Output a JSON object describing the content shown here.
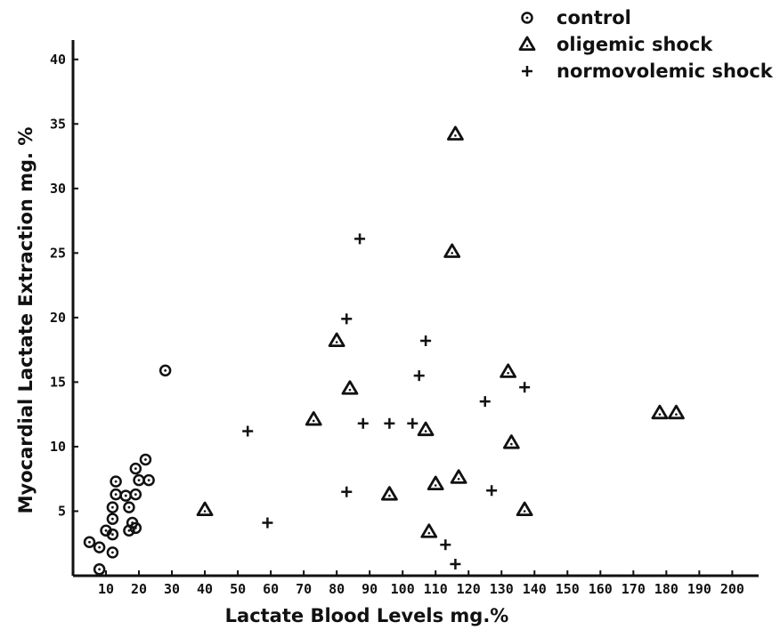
{
  "chart_data": {
    "type": "scatter",
    "title": "",
    "xlabel": "Lactate  Blood  Levels    mg.%",
    "ylabel": "Myocardial  Lactate  Extraction    mg. %",
    "xlim": [
      0,
      208
    ],
    "ylim": [
      0,
      41.5
    ],
    "x_ticks": [
      10,
      20,
      30,
      40,
      50,
      60,
      70,
      80,
      90,
      100,
      110,
      120,
      130,
      140,
      150,
      160,
      170,
      180,
      190,
      200
    ],
    "y_ticks": [
      5,
      10,
      15,
      20,
      25,
      30,
      35,
      40
    ],
    "grid": false,
    "legend_position": "top-right",
    "series": [
      {
        "name": "control",
        "marker": "circle-dot",
        "points": [
          [
            5,
            2.6
          ],
          [
            8,
            2.2
          ],
          [
            8,
            0.5
          ],
          [
            10,
            3.5
          ],
          [
            12,
            1.8
          ],
          [
            12,
            3.2
          ],
          [
            12,
            4.4
          ],
          [
            12,
            5.3
          ],
          [
            13,
            6.3
          ],
          [
            13,
            7.3
          ],
          [
            16,
            6.2
          ],
          [
            17,
            5.3
          ],
          [
            17,
            3.5
          ],
          [
            18,
            4.1
          ],
          [
            19,
            3.7
          ],
          [
            19,
            6.3
          ],
          [
            19,
            8.3
          ],
          [
            20,
            7.4
          ],
          [
            22,
            9.0
          ],
          [
            23,
            7.4
          ],
          [
            28,
            15.9
          ]
        ]
      },
      {
        "name": "oligemic shock",
        "marker": "triangle-dot",
        "points": [
          [
            40,
            5.1
          ],
          [
            73,
            12.1
          ],
          [
            80,
            18.2
          ],
          [
            84,
            14.5
          ],
          [
            96,
            6.3
          ],
          [
            107,
            11.3
          ],
          [
            108,
            3.4
          ],
          [
            110,
            7.1
          ],
          [
            115,
            25.1
          ],
          [
            116,
            34.2
          ],
          [
            117,
            7.6
          ],
          [
            132,
            15.8
          ],
          [
            133,
            10.3
          ],
          [
            137,
            5.1
          ],
          [
            178,
            12.6
          ],
          [
            183,
            12.6
          ]
        ]
      },
      {
        "name": "normovolemic shock",
        "marker": "plus",
        "points": [
          [
            53,
            11.2
          ],
          [
            59,
            4.1
          ],
          [
            83,
            6.5
          ],
          [
            83,
            19.9
          ],
          [
            87,
            26.1
          ],
          [
            88,
            11.8
          ],
          [
            96,
            11.8
          ],
          [
            103,
            11.8
          ],
          [
            105,
            15.5
          ],
          [
            107,
            18.2
          ],
          [
            113,
            2.4
          ],
          [
            116,
            0.9
          ],
          [
            125,
            13.5
          ],
          [
            127,
            6.6
          ],
          [
            137,
            14.6
          ]
        ]
      }
    ]
  }
}
